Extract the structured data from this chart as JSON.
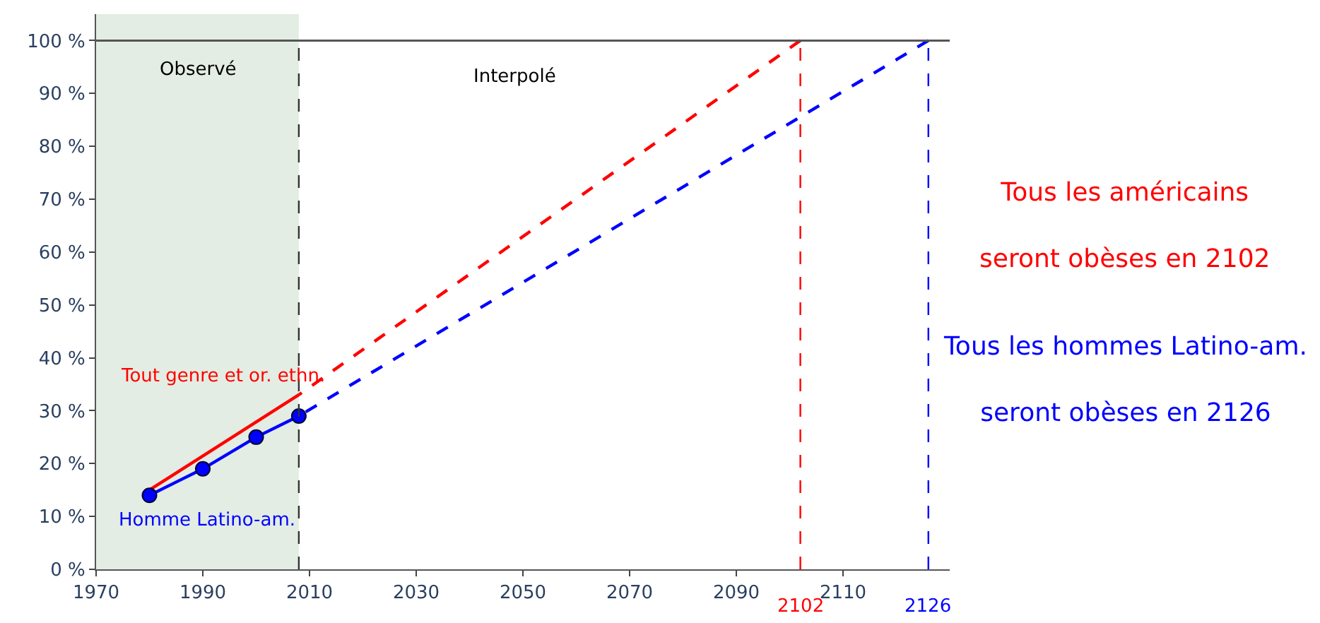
{
  "chart_data": {
    "type": "line",
    "xlim": [
      1970,
      2130
    ],
    "xticks": [
      1970,
      1990,
      2010,
      2030,
      2050,
      2070,
      2090,
      2110
    ],
    "ylim": [
      0,
      105
    ],
    "yticks": [
      {
        "value": 0,
        "label": "0 %"
      },
      {
        "value": 10,
        "label": "10 %"
      },
      {
        "value": 20,
        "label": "20 %"
      },
      {
        "value": 30,
        "label": "30 %"
      },
      {
        "value": 40,
        "label": "40 %"
      },
      {
        "value": 50,
        "label": "50 %"
      },
      {
        "value": 60,
        "label": "60 %"
      },
      {
        "value": 70,
        "label": "70 %"
      },
      {
        "value": 80,
        "label": "80 %"
      },
      {
        "value": 90,
        "label": "90 %"
      },
      {
        "value": 100,
        "label": "100 %"
      }
    ],
    "grid": false,
    "legend": false,
    "series": [
      {
        "name": "Tout genre et or. ethn.",
        "color": "#ff0000",
        "x": [
          1980,
          2008
        ],
        "values": [
          15,
          33
        ],
        "line_style": "solid",
        "marker": "none"
      },
      {
        "name": "Homme Latino-am.",
        "color": "#0000ff",
        "x": [
          1980,
          1990,
          2000,
          2008
        ],
        "values": [
          14,
          19,
          25,
          29
        ],
        "line_style": "solid",
        "marker": "circle"
      },
      {
        "color": "#ff0000",
        "x": [
          2102,
          2008
        ],
        "values": [
          100,
          33
        ],
        "line_style": "dashed",
        "marker": "none"
      },
      {
        "color": "#0000ff",
        "x": [
          2126,
          2008
        ],
        "values": [
          100,
          29
        ],
        "line_style": "dashed",
        "marker": "none"
      }
    ],
    "bands": [
      {
        "axis": "x",
        "from": 1970,
        "to": 2008,
        "label": "Observé",
        "color": "#e3ede3"
      }
    ],
    "ref_lines": [
      {
        "axis": "x",
        "value": 2008,
        "color": "#333333",
        "line_style": "dashed"
      },
      {
        "axis": "y",
        "value": 100,
        "color": "#555555",
        "line_style": "solid"
      },
      {
        "axis": "x",
        "value": 2102,
        "label": "2102",
        "color": "#ff0000",
        "line_style": "dashed"
      },
      {
        "axis": "x",
        "value": 2126,
        "label": "2126",
        "color": "#0000ff",
        "line_style": "dashed"
      }
    ],
    "annotations": [
      "Interpolé",
      "Tous les américains\nseront obèses en 2102",
      "Tous les hommes Latino-am.\nseront obèses en 2126"
    ]
  }
}
